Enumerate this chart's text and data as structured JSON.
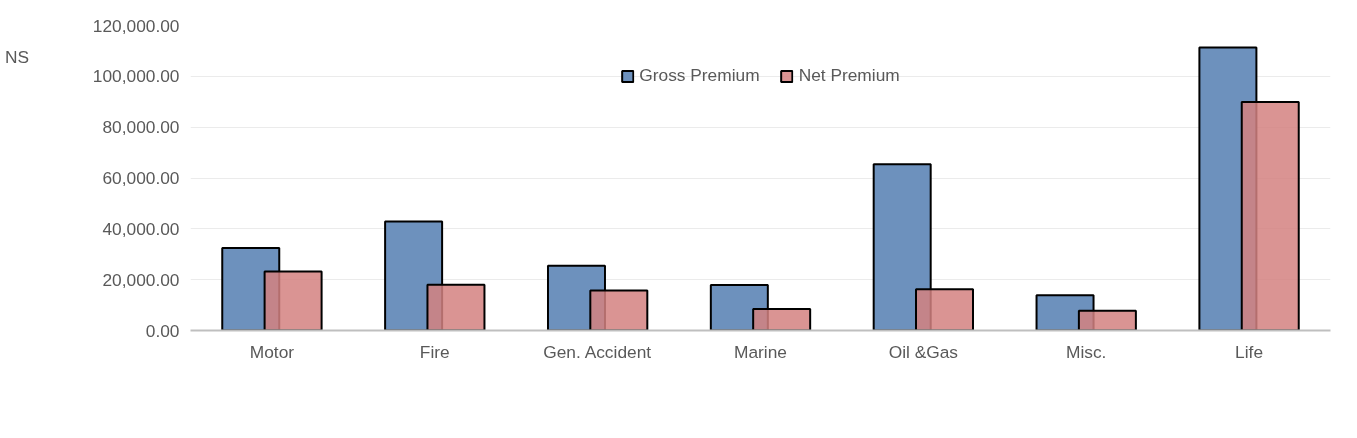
{
  "chart_data": {
    "type": "bar",
    "ylabel": "NS",
    "categories": [
      "Motor",
      "Fire",
      "Gen. Accident",
      "Marine",
      "Oil &Gas",
      "Misc.",
      "Life"
    ],
    "series": [
      {
        "name": "Gross Premium",
        "color": "#6d91bd",
        "values": [
          32500,
          42900,
          25500,
          17900,
          65400,
          13900,
          111300
        ]
      },
      {
        "name": "Net Premium",
        "color": "#d48180",
        "values": [
          23200,
          18000,
          15700,
          8500,
          16200,
          7800,
          89900
        ]
      }
    ],
    "ylim": [
      0,
      120000
    ],
    "yticks": [
      {
        "value": 0,
        "label": "0.00"
      },
      {
        "value": 20000,
        "label": "20,000.00"
      },
      {
        "value": 40000,
        "label": "40,000.00"
      },
      {
        "value": 60000,
        "label": "60,000.00"
      },
      {
        "value": 80000,
        "label": "80,000.00"
      },
      {
        "value": 100000,
        "label": "100,000.00"
      },
      {
        "value": 120000,
        "label": "120,000.00"
      }
    ],
    "grid": "y",
    "legend": "top"
  }
}
